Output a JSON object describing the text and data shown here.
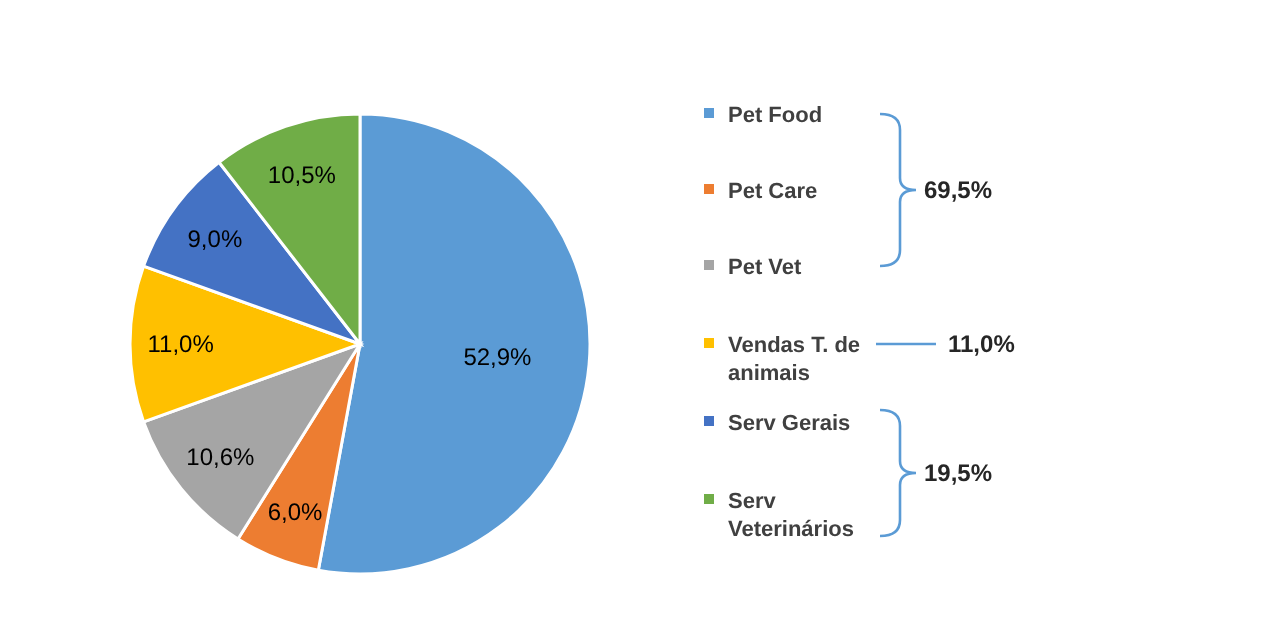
{
  "chart_data": {
    "type": "pie",
    "categories": [
      "Pet Food",
      "Pet Care",
      "Pet Vet",
      "Vendas T. de animais",
      "Serv Gerais",
      "Serv Veterinários"
    ],
    "values": [
      52.9,
      6.0,
      10.6,
      11.0,
      9.0,
      10.5
    ],
    "value_labels": [
      "52,9%",
      "6,0%",
      "10,6%",
      "11,0%",
      "9,0%",
      "10,5%"
    ],
    "colors": [
      "#5b9bd5",
      "#ed7d31",
      "#a5a5a5",
      "#ffc000",
      "#4472c4",
      "#70ad47"
    ],
    "legend": "right",
    "annotations": [
      "69,5%",
      "11,0%",
      "19,5%"
    ]
  }
}
